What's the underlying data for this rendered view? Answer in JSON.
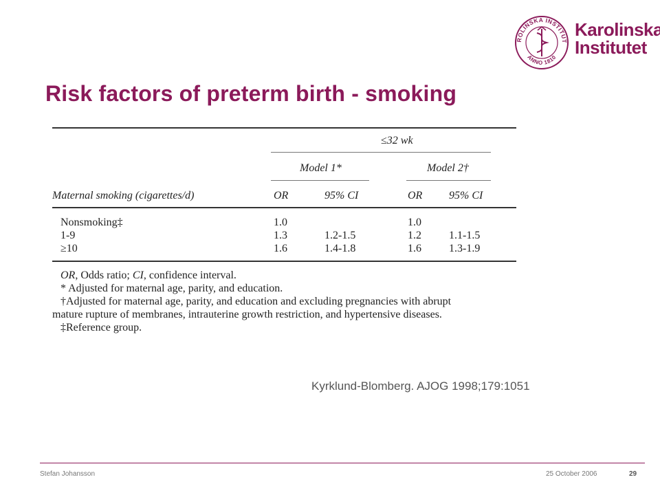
{
  "brand": {
    "name_line1": "Karolinska",
    "name_line2": "Institutet",
    "seal_text_top": "KAROLINSKA INSTITUTET",
    "seal_text_bottom": "ANNO 1810",
    "color": "#8b1a5a"
  },
  "slide": {
    "title": "Risk factors of preterm birth - smoking",
    "citation": "Kyrklund-Blomberg. AJOG 1998;179:1051"
  },
  "table": {
    "group_header": "≤32 wk",
    "model1": "Model 1*",
    "model2": "Model 2†",
    "row_header": "Maternal smoking (cigarettes/d)",
    "col_or": "OR",
    "col_ci": "95% CI",
    "rows": [
      {
        "label": "Nonsmoking‡",
        "or1": "1.0",
        "ci1": "",
        "or2": "1.0",
        "ci2": ""
      },
      {
        "label": "1-9",
        "or1": "1.3",
        "ci1": "1.2-1.5",
        "or2": "1.2",
        "ci2": "1.1-1.5"
      },
      {
        "label": "≥10",
        "or1": "1.6",
        "ci1": "1.4-1.8",
        "or2": "1.6",
        "ci2": "1.3-1.9"
      }
    ],
    "footnotes": {
      "fn1_a": "OR",
      "fn1_b": ", Odds ratio; ",
      "fn1_c": "CI",
      "fn1_d": ", confidence interval.",
      "fn2": "* Adjusted for maternal age, parity, and education.",
      "fn3": "†Adjusted for maternal age, parity, and education and excluding pregnancies with abrupt",
      "fn4": "mature rupture of membranes, intrauterine growth restriction, and hypertensive diseases.",
      "fn5": "‡Reference group."
    }
  },
  "footer": {
    "author": "Stefan Johansson",
    "date": "25 October 2006",
    "page": "29"
  }
}
